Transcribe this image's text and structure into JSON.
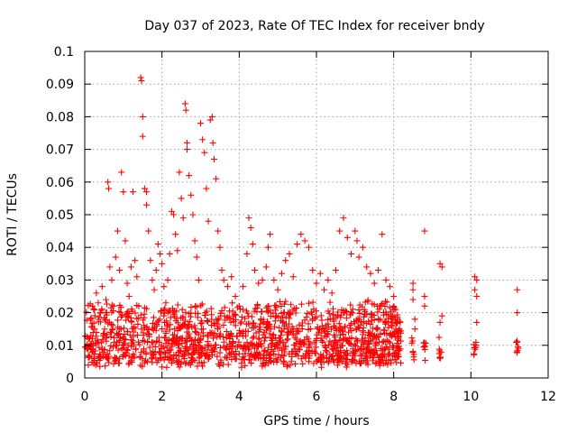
{
  "chart_data": {
    "type": "scatter",
    "title": "Day 037 of 2023, Rate Of TEC Index for receiver bndy",
    "xlabel": "GPS time / hours",
    "ylabel": "ROTI / TECUs",
    "xlim": [
      0,
      12
    ],
    "ylim": [
      0,
      0.1
    ],
    "x_ticks": [
      "0",
      "2",
      "4",
      "6",
      "8",
      "10",
      "12"
    ],
    "y_ticks": [
      "0",
      "0.01",
      "0.02",
      "0.03",
      "0.04",
      "0.05",
      "0.06",
      "0.07",
      "0.08",
      "0.09",
      "0.1"
    ],
    "grid": true,
    "legend": "none",
    "marker": "plus",
    "color": "#ff0000",
    "series": [
      {
        "points": [
          [
            0.05,
            0.009
          ],
          [
            0.1,
            0.012
          ],
          [
            0.15,
            0.018
          ],
          [
            0.2,
            0.022
          ],
          [
            0.25,
            0.015
          ],
          [
            0.3,
            0.026
          ],
          [
            0.35,
            0.011
          ],
          [
            0.4,
            0.02
          ],
          [
            0.45,
            0.028
          ],
          [
            0.5,
            0.013
          ],
          [
            0.55,
            0.024
          ],
          [
            0.6,
            0.06
          ],
          [
            0.62,
            0.058
          ],
          [
            0.65,
            0.034
          ],
          [
            0.7,
            0.03
          ],
          [
            0.75,
            0.022
          ],
          [
            0.8,
            0.037
          ],
          [
            0.85,
            0.045
          ],
          [
            0.9,
            0.033
          ],
          [
            0.95,
            0.063
          ],
          [
            1.0,
            0.057
          ],
          [
            1.05,
            0.042
          ],
          [
            1.1,
            0.029
          ],
          [
            1.15,
            0.025
          ],
          [
            1.2,
            0.034
          ],
          [
            1.25,
            0.057
          ],
          [
            1.3,
            0.036
          ],
          [
            1.35,
            0.031
          ],
          [
            1.4,
            0.022
          ],
          [
            1.45,
            0.092
          ],
          [
            1.47,
            0.091
          ],
          [
            1.5,
            0.08
          ],
          [
            1.5,
            0.074
          ],
          [
            1.55,
            0.058
          ],
          [
            1.6,
            0.057
          ],
          [
            1.6,
            0.053
          ],
          [
            1.65,
            0.045
          ],
          [
            1.7,
            0.036
          ],
          [
            1.75,
            0.03
          ],
          [
            1.8,
            0.027
          ],
          [
            1.85,
            0.033
          ],
          [
            1.9,
            0.041
          ],
          [
            1.95,
            0.038
          ],
          [
            2.0,
            0.035
          ],
          [
            2.05,
            0.028
          ],
          [
            2.1,
            0.023
          ],
          [
            2.15,
            0.03
          ],
          [
            2.2,
            0.038
          ],
          [
            2.25,
            0.051
          ],
          [
            2.3,
            0.05
          ],
          [
            2.35,
            0.044
          ],
          [
            2.4,
            0.039
          ],
          [
            2.45,
            0.063
          ],
          [
            2.5,
            0.055
          ],
          [
            2.55,
            0.049
          ],
          [
            2.6,
            0.084
          ],
          [
            2.62,
            0.082
          ],
          [
            2.65,
            0.072
          ],
          [
            2.65,
            0.07
          ],
          [
            2.7,
            0.062
          ],
          [
            2.75,
            0.056
          ],
          [
            2.8,
            0.05
          ],
          [
            2.85,
            0.042
          ],
          [
            2.9,
            0.037
          ],
          [
            2.95,
            0.03
          ],
          [
            3.0,
            0.078
          ],
          [
            3.05,
            0.073
          ],
          [
            3.1,
            0.069
          ],
          [
            3.15,
            0.058
          ],
          [
            3.2,
            0.048
          ],
          [
            3.25,
            0.079
          ],
          [
            3.3,
            0.08
          ],
          [
            3.32,
            0.072
          ],
          [
            3.35,
            0.067
          ],
          [
            3.4,
            0.061
          ],
          [
            3.45,
            0.045
          ],
          [
            3.5,
            0.04
          ],
          [
            3.55,
            0.033
          ],
          [
            3.6,
            0.03
          ],
          [
            3.7,
            0.028
          ],
          [
            3.8,
            0.031
          ],
          [
            3.9,
            0.025
          ],
          [
            4.0,
            0.022
          ],
          [
            4.1,
            0.028
          ],
          [
            4.2,
            0.038
          ],
          [
            4.25,
            0.049
          ],
          [
            4.3,
            0.046
          ],
          [
            4.35,
            0.041
          ],
          [
            4.4,
            0.033
          ],
          [
            4.5,
            0.029
          ],
          [
            4.6,
            0.03
          ],
          [
            4.7,
            0.034
          ],
          [
            4.75,
            0.04
          ],
          [
            4.8,
            0.044
          ],
          [
            4.9,
            0.03
          ],
          [
            5.0,
            0.027
          ],
          [
            5.1,
            0.032
          ],
          [
            5.2,
            0.036
          ],
          [
            5.3,
            0.038
          ],
          [
            5.4,
            0.031
          ],
          [
            5.5,
            0.041
          ],
          [
            5.6,
            0.044
          ],
          [
            5.7,
            0.042
          ],
          [
            5.8,
            0.04
          ],
          [
            5.9,
            0.033
          ],
          [
            6.0,
            0.029
          ],
          [
            6.1,
            0.032
          ],
          [
            6.2,
            0.027
          ],
          [
            6.3,
            0.03
          ],
          [
            6.4,
            0.026
          ],
          [
            6.5,
            0.033
          ],
          [
            6.6,
            0.045
          ],
          [
            6.7,
            0.049
          ],
          [
            6.8,
            0.043
          ],
          [
            6.9,
            0.038
          ],
          [
            7.0,
            0.045
          ],
          [
            7.05,
            0.042
          ],
          [
            7.1,
            0.037
          ],
          [
            7.2,
            0.04
          ],
          [
            7.3,
            0.034
          ],
          [
            7.4,
            0.032
          ],
          [
            7.5,
            0.029
          ],
          [
            7.6,
            0.033
          ],
          [
            7.7,
            0.044
          ],
          [
            7.8,
            0.03
          ],
          [
            7.9,
            0.028
          ],
          [
            8.0,
            0.025
          ],
          [
            8.05,
            0.021
          ],
          [
            8.1,
            0.018
          ],
          [
            8.15,
            0.015
          ],
          [
            8.5,
            0.029
          ],
          [
            8.5,
            0.027
          ],
          [
            8.5,
            0.024
          ],
          [
            8.55,
            0.018
          ],
          [
            8.55,
            0.015
          ],
          [
            8.8,
            0.045
          ],
          [
            8.8,
            0.025
          ],
          [
            8.8,
            0.022
          ],
          [
            9.2,
            0.035
          ],
          [
            9.25,
            0.034
          ],
          [
            9.25,
            0.019
          ],
          [
            9.2,
            0.017
          ],
          [
            10.1,
            0.031
          ],
          [
            10.15,
            0.03
          ],
          [
            10.1,
            0.027
          ],
          [
            10.15,
            0.025
          ],
          [
            10.15,
            0.017
          ],
          [
            11.2,
            0.027
          ],
          [
            11.2,
            0.02
          ]
        ],
        "band_clusters": [
          {
            "x_from": 0.0,
            "x_to": 8.2,
            "y_min": 0.003,
            "y_max": 0.02,
            "density": "dense"
          },
          {
            "x": 8.5,
            "y_min": 0.005,
            "y_max": 0.013
          },
          {
            "x": 8.8,
            "y_min": 0.005,
            "y_max": 0.011
          },
          {
            "x": 9.2,
            "y_min": 0.006,
            "y_max": 0.013
          },
          {
            "x": 10.1,
            "y_min": 0.006,
            "y_max": 0.011
          },
          {
            "x": 11.2,
            "y_min": 0.006,
            "y_max": 0.012
          }
        ]
      }
    ]
  }
}
